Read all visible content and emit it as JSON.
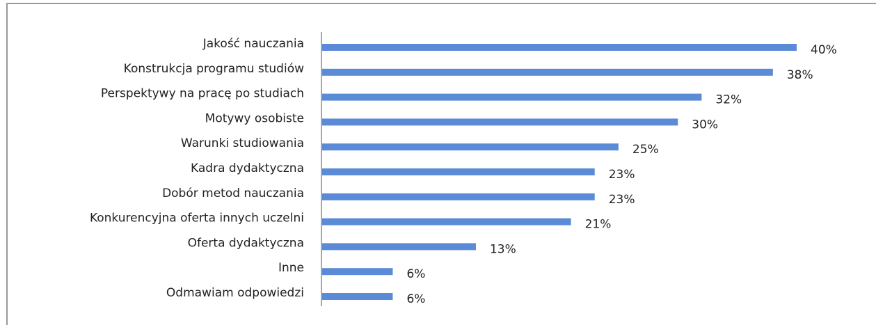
{
  "chart_data": {
    "type": "bar",
    "orientation": "horizontal",
    "categories": [
      "Jakość nauczania",
      "Konstrukcja programu studiów",
      "Perspektywy na pracę po studiach",
      "Motywy osobiste",
      "Warunki studiowania",
      "Kadra dydaktyczna",
      "Dobór metod nauczania",
      "Konkurencyjna oferta innych uczelni",
      "Oferta dydaktyczna",
      "Inne",
      "Odmawiam odpowiedzi"
    ],
    "values": [
      40,
      38,
      32,
      30,
      25,
      23,
      23,
      21,
      13,
      6,
      6
    ],
    "value_labels": [
      "40%",
      "38%",
      "32%",
      "30%",
      "25%",
      "23%",
      "23%",
      "21%",
      "13%",
      "6%",
      "6%"
    ],
    "color": "#5b8bd6"
  }
}
